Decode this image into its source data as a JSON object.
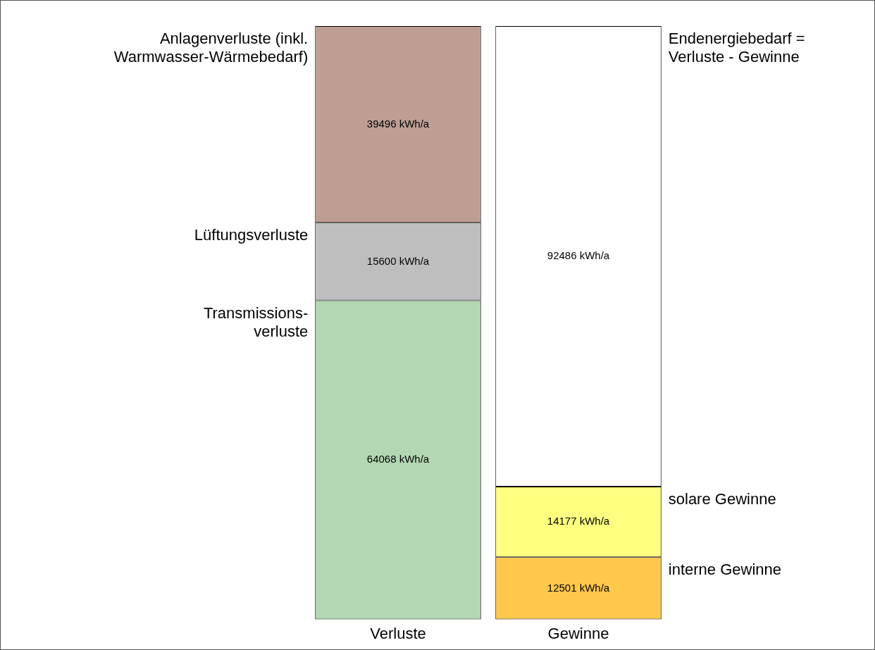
{
  "chart_data": {
    "type": "bar",
    "stacked": true,
    "categories": [
      "Verluste",
      "Gewinne"
    ],
    "legend": false,
    "grid": false,
    "tick_labels": "x",
    "series": [
      {
        "name": "Transmissions-\nverluste",
        "color": "#b3d7b1",
        "values": [
          64068,
          null
        ],
        "value_labels": [
          "64068 kWh/a",
          null
        ]
      },
      {
        "name": "Lüftungsverluste",
        "color": "#bebebe",
        "values": [
          15600,
          null
        ],
        "value_labels": [
          "15600 kWh/a",
          null
        ]
      },
      {
        "name": "Anlagenverluste (inkl.\nWarmwasser-Wärmebedarf)",
        "color": "#bd9e92",
        "values": [
          39496,
          null
        ],
        "value_labels": [
          "39496 kWh/a",
          null
        ]
      },
      {
        "name": "interne Gewinne",
        "color": "#ffc84b",
        "values": [
          null,
          12501
        ],
        "value_labels": [
          null,
          "12501 kWh/a"
        ]
      },
      {
        "name": "solare Gewinne",
        "color": "#ffff80",
        "values": [
          null,
          14177
        ],
        "value_labels": [
          null,
          "14177 kWh/a"
        ]
      },
      {
        "name": "Endenergiebedarf =\nVerluste - Gewinne",
        "color": "#ffffff",
        "values": [
          null,
          92486
        ],
        "value_labels": [
          null,
          "92486 kWh/a"
        ]
      }
    ]
  }
}
